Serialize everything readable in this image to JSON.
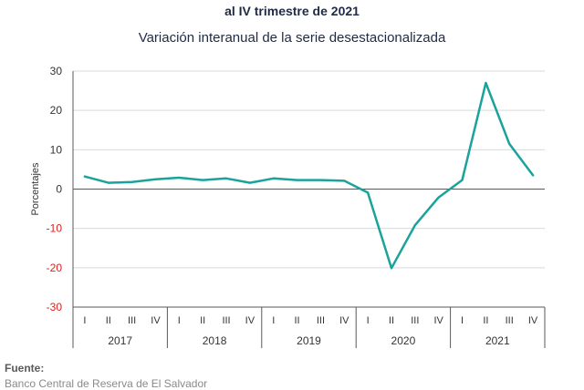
{
  "header": {
    "title": "al IV trimestre de 2021",
    "subtitle": "Variación interanual de la serie desestacionalizada"
  },
  "footer": {
    "source_label": "Fuente:",
    "source_text": "Banco Central de Reserva de El Salvador"
  },
  "colors": {
    "line": "#1aa39a",
    "negative_tick": "#e02020",
    "axis": "#595959",
    "grid": "#d9d9d9"
  },
  "chart_data": {
    "type": "line",
    "title": "Variación interanual de la serie desestacionalizada",
    "ylabel": "Porcentajes",
    "xlabel": "",
    "ylim": [
      -30,
      30
    ],
    "yticks": [
      30,
      20,
      10,
      0,
      -10,
      -20,
      -30
    ],
    "grid": true,
    "legend": "none",
    "quarter_labels": [
      "I",
      "II",
      "III",
      "IV"
    ],
    "years": [
      "2017",
      "2018",
      "2019",
      "2020",
      "2021"
    ],
    "categories": [
      "2017-I",
      "2017-II",
      "2017-III",
      "2017-IV",
      "2018-I",
      "2018-II",
      "2018-III",
      "2018-IV",
      "2019-I",
      "2019-II",
      "2019-III",
      "2019-IV",
      "2020-I",
      "2020-II",
      "2020-III",
      "2020-IV",
      "2021-I",
      "2021-II",
      "2021-III",
      "2021-IV"
    ],
    "series": [
      {
        "values": [
          3.2,
          1.6,
          1.8,
          2.5,
          2.9,
          2.3,
          2.7,
          1.6,
          2.7,
          2.3,
          2.3,
          2.1,
          -0.9,
          -20.1,
          -9.2,
          -2.1,
          2.3,
          27.0,
          11.5,
          3.5
        ]
      }
    ]
  }
}
